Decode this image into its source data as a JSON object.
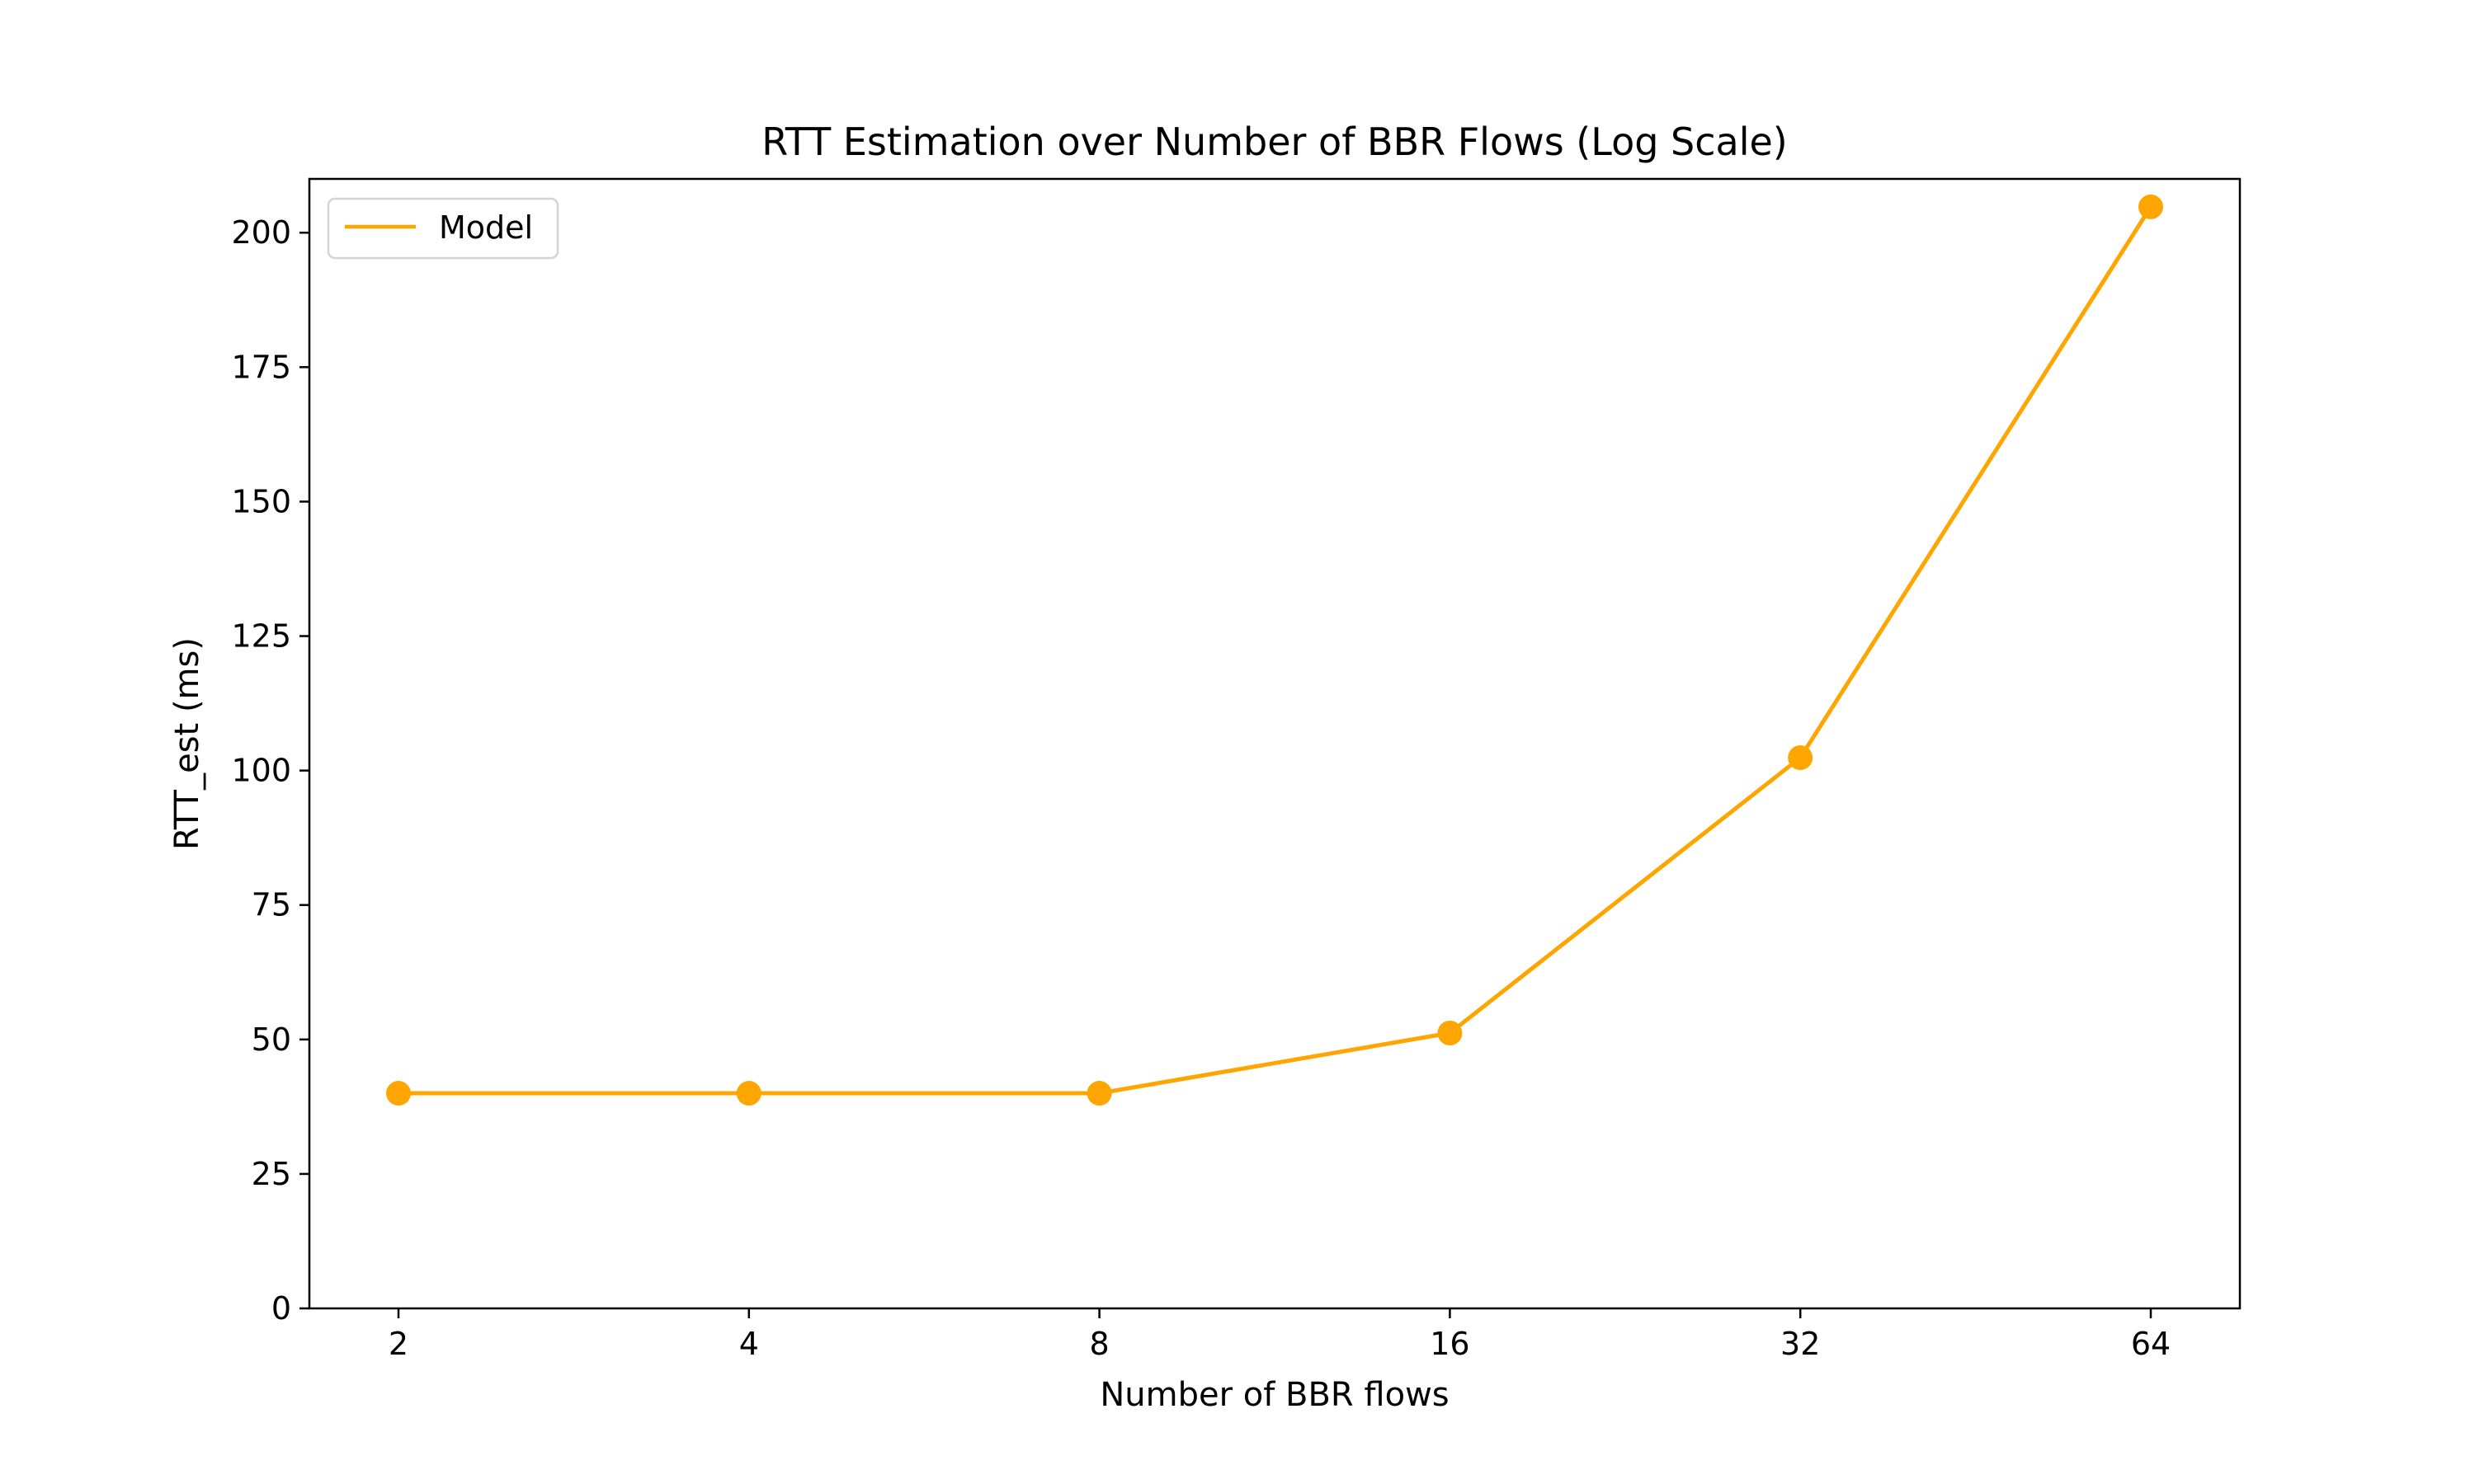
{
  "chart_data": {
    "type": "line",
    "title": "RTT Estimation over Number of BBR Flows (Log Scale)",
    "xlabel": "Number of BBR flows",
    "ylabel": "RTT_est (ms)",
    "x_scale": "log2",
    "x_ticks": [
      2,
      4,
      8,
      16,
      32,
      64
    ],
    "x_tick_labels": [
      "2",
      "4",
      "8",
      "16",
      "32",
      "64"
    ],
    "y_ticks": [
      0,
      25,
      50,
      75,
      100,
      125,
      150,
      175,
      200
    ],
    "y_tick_labels": [
      "0",
      "25",
      "50",
      "75",
      "100",
      "125",
      "150",
      "175",
      "200"
    ],
    "ylim": [
      0,
      210
    ],
    "grid": false,
    "legend_position": "top-left",
    "series": [
      {
        "name": "Model",
        "color": "#FFA500",
        "marker": "circle",
        "x": [
          2,
          4,
          8,
          16,
          32,
          64
        ],
        "y": [
          40,
          40,
          40,
          51.2,
          102.4,
          204.8
        ]
      }
    ]
  }
}
